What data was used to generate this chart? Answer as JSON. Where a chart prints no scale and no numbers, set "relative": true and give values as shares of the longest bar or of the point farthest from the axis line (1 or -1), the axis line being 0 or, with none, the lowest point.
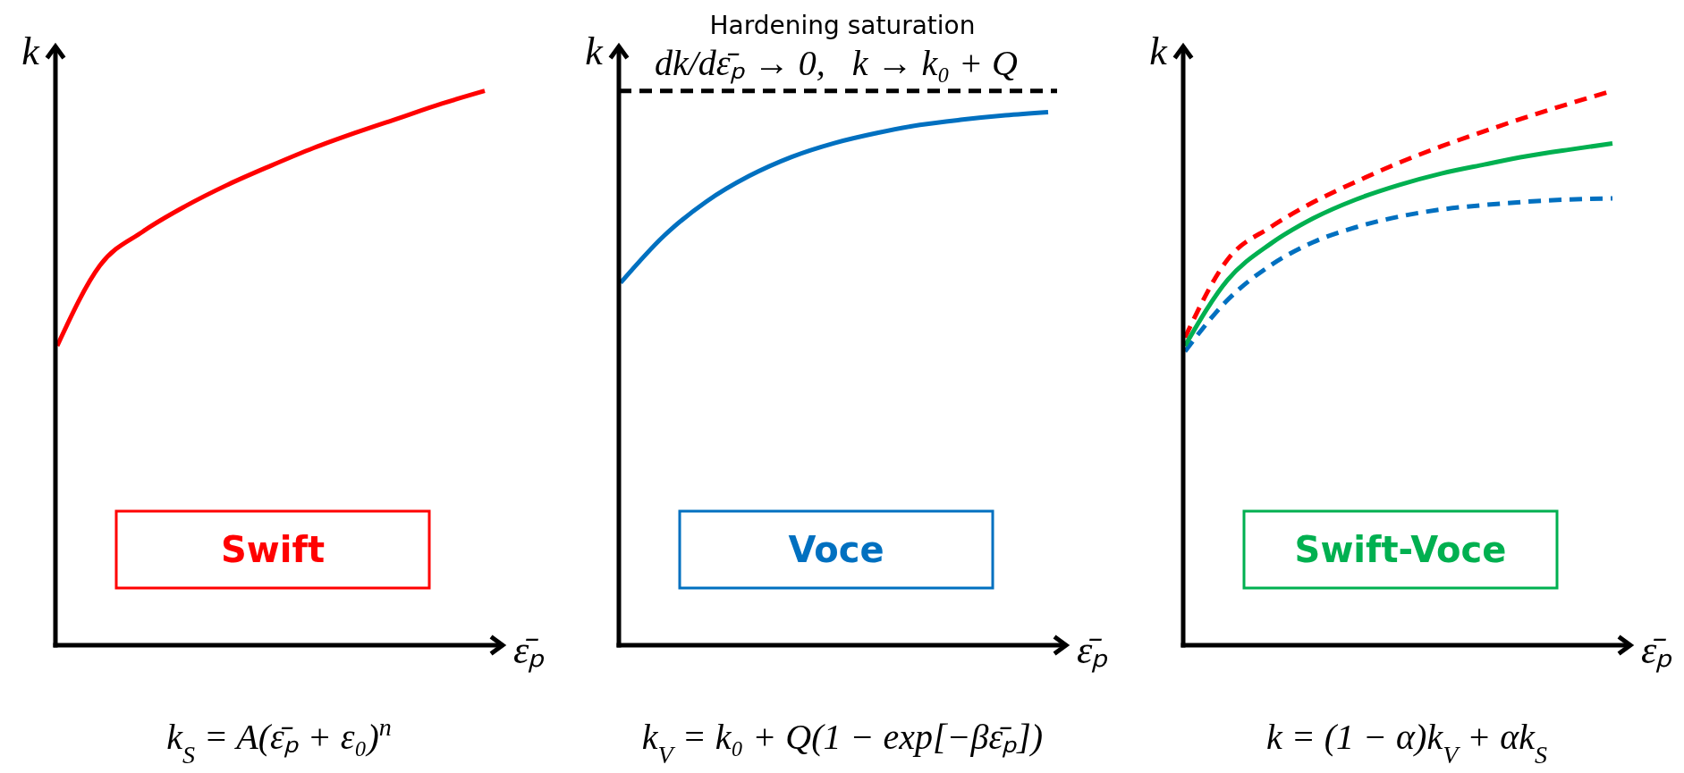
{
  "chart_data": [
    {
      "type": "line",
      "relative": true,
      "ylabel": "k",
      "xlabel": "ε̄ₚ",
      "legend": "bottom",
      "grid": false,
      "categories": [
        null,
        null,
        null,
        null,
        null,
        null,
        null,
        null,
        null,
        null,
        null
      ],
      "series": [
        {
          "name": "Swift",
          "color": "#ff0000",
          "values": [
            0.54,
            0.685,
            0.746,
            0.792,
            0.831,
            0.865,
            0.897,
            0.925,
            0.951,
            0.977,
            1.0
          ]
        }
      ],
      "annotations": [
        "k$_{S}$ = A(ε̄ₚ + ε₀)$^{n}$"
      ]
    },
    {
      "type": "line",
      "relative": true,
      "title": "Hardening saturation",
      "ylabel": "k",
      "xlabel": "ε̄ₚ",
      "legend": "bottom",
      "grid": false,
      "categories": [
        null,
        null,
        null,
        null,
        null,
        null,
        null,
        null,
        null,
        null,
        null
      ],
      "series": [
        {
          "name": "Voce",
          "color": "#0070c0",
          "values": [
            0.68,
            0.767,
            0.832,
            0.88,
            0.916,
            0.942,
            0.961,
            0.976,
            0.986,
            0.994,
            1.0
          ]
        }
      ],
      "ref_lines": [
        {
          "axis": "y",
          "value": 1.04,
          "color": "#000000",
          "line_style": "dashed"
        }
      ],
      "annotations": [
        "k$_{V}$ = k₀ + Q(1 − exp[−βε̄ₚ])",
        {
          "text": "dk/dε̄ₚ → 0,   k → k₀ + Q",
          "y": 1.04
        }
      ]
    },
    {
      "type": "line",
      "relative": true,
      "ylabel": "k",
      "xlabel": "ε̄ₚ",
      "legend": "bottom",
      "grid": false,
      "categories": [
        null,
        null,
        null,
        null,
        null,
        null,
        null,
        null,
        null,
        null,
        null
      ],
      "series": [
        {
          "color": "#ff0000",
          "line_style": "dashed",
          "values": [
            0.555,
            0.696,
            0.754,
            0.799,
            0.836,
            0.87,
            0.9,
            0.927,
            0.953,
            0.977,
            1.0
          ]
        },
        {
          "color": "#0070c0",
          "line_style": "dashed",
          "values": [
            0.53,
            0.623,
            0.685,
            0.727,
            0.754,
            0.773,
            0.786,
            0.794,
            0.8,
            0.804,
            0.806
          ]
        },
        {
          "name": "Swift-Voce",
          "color": "#00b050",
          "values": [
            0.54,
            0.659,
            0.724,
            0.77,
            0.804,
            0.83,
            0.851,
            0.867,
            0.882,
            0.894,
            0.905
          ]
        }
      ],
      "annotations": [
        "k = (1 − α)k$_{V}$ + αk$_{S}$"
      ]
    }
  ]
}
